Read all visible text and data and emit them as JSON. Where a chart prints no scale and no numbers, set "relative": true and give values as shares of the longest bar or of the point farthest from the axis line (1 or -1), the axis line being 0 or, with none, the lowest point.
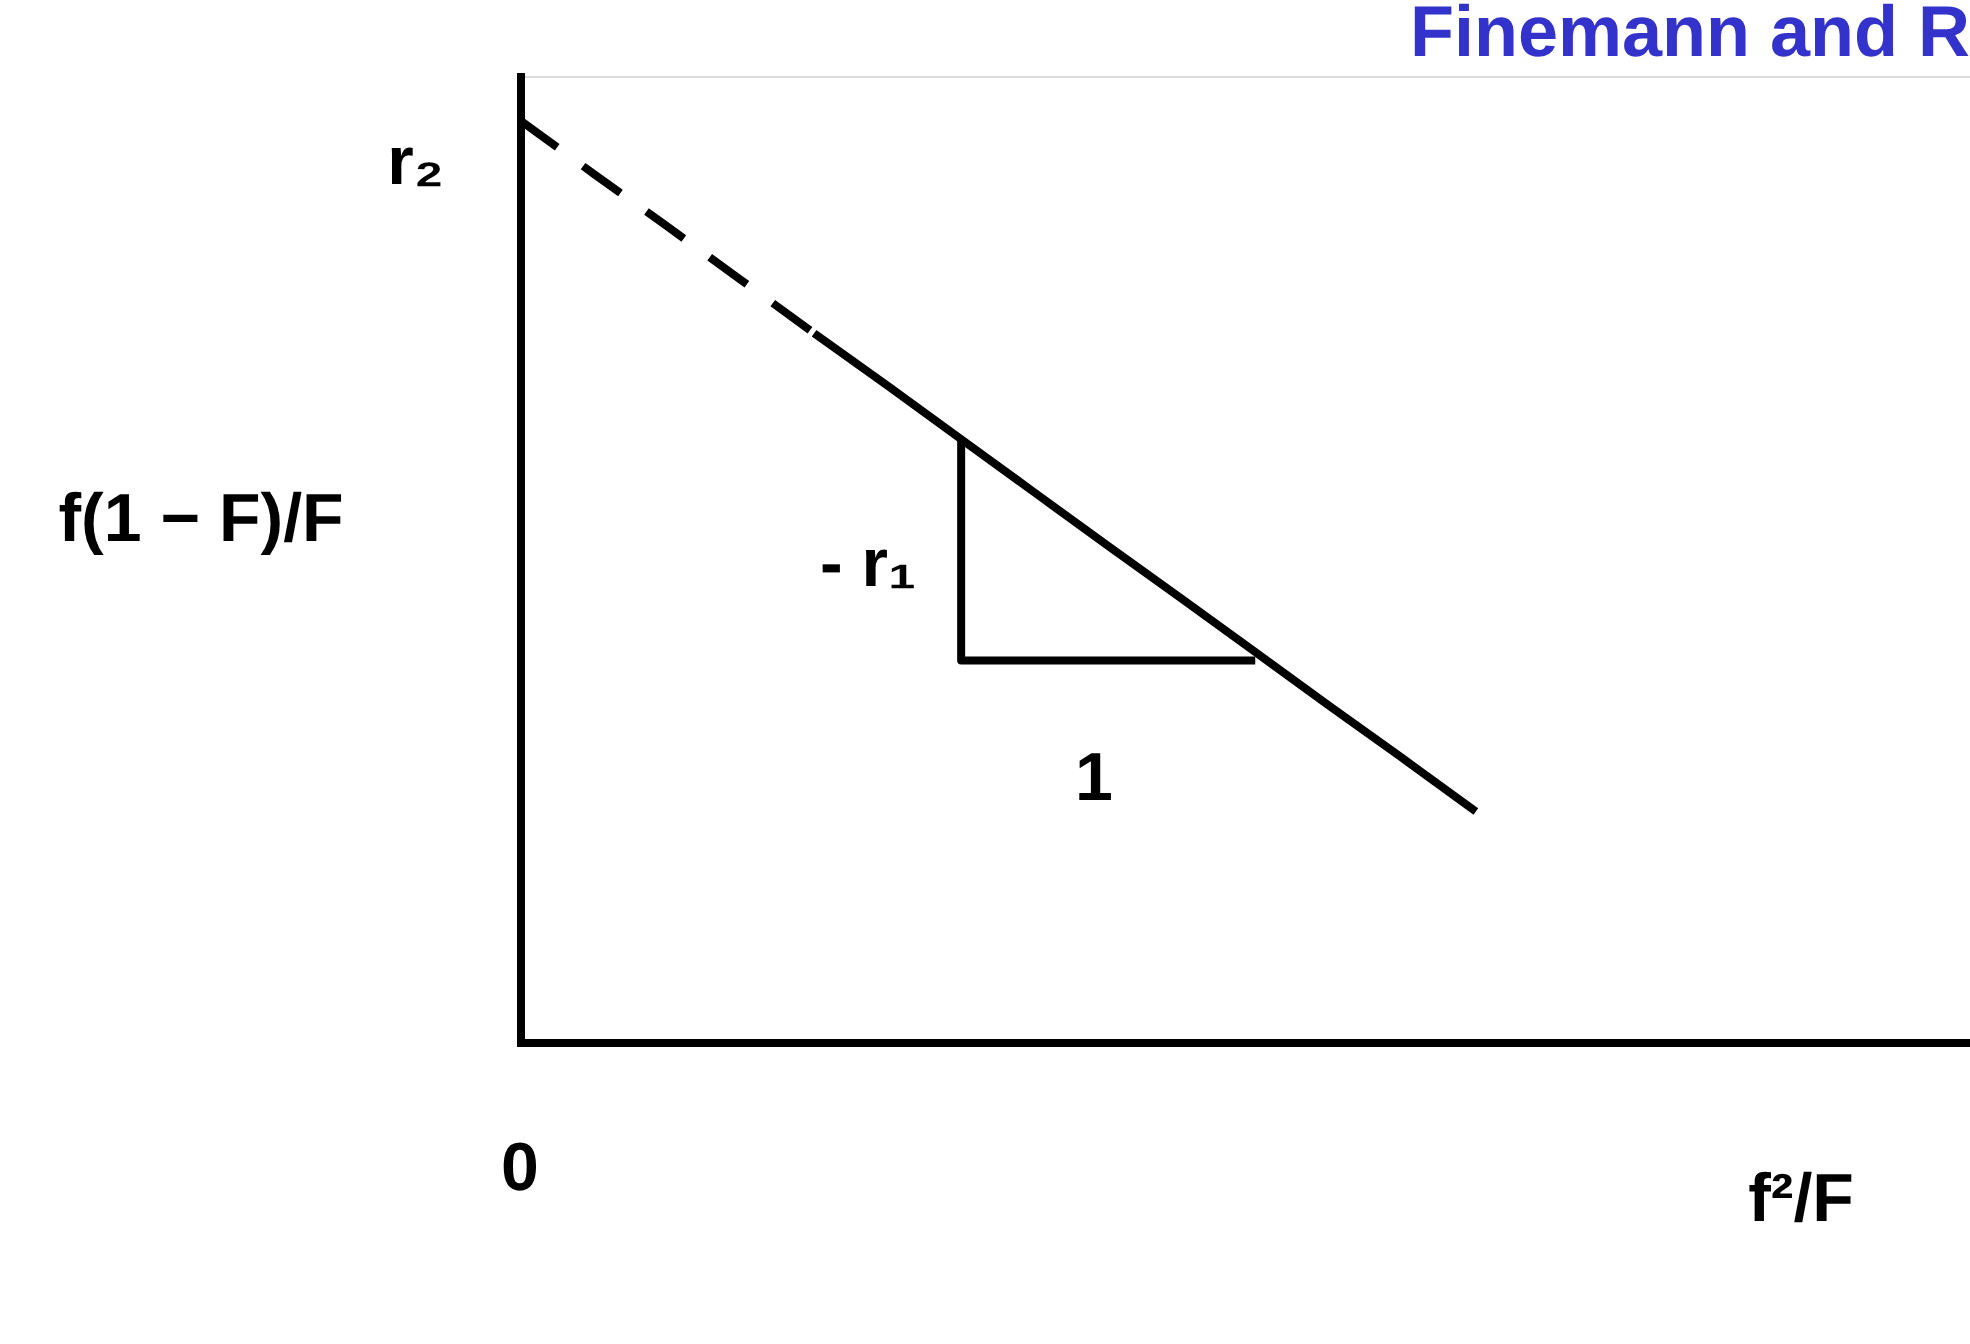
{
  "chart_data": {
    "type": "line",
    "title": "Finemann and R",
    "xlabel": "f²/F",
    "ylabel": "f(1 − F)/F",
    "relative": true,
    "categories": [
      null,
      null,
      null,
      null,
      null,
      null,
      null,
      null,
      null,
      null,
      null,
      null,
      null,
      null
    ],
    "series": [
      {
        "color": "#000000",
        "line_style": "dashed",
        "values": [
          1,
          0.942,
          0.885,
          0.827,
          0.769,
          null,
          null,
          null,
          null,
          null,
          null,
          null,
          null,
          null
        ]
      },
      {
        "color": "#000000",
        "line_style": "solid",
        "values": [
          null,
          null,
          null,
          null,
          0.769,
          0.712,
          0.654,
          0.596,
          0.538,
          0.481,
          0.423,
          0.365,
          0.308,
          0.25
        ]
      },
      {
        "type": "step",
        "color": "#000000",
        "line_style": "solid",
        "values": [
          null,
          null,
          null,
          null,
          null,
          null,
          0.654,
          0.414,
          0.414,
          0.414,
          0.414,
          null,
          null,
          null
        ]
      }
    ],
    "annotations": [
      "r₂",
      "- r₁",
      "1",
      "0"
    ]
  }
}
